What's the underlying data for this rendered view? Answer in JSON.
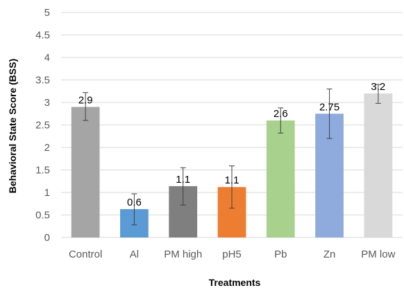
{
  "chart_data": {
    "type": "bar",
    "xlabel": "Treatments",
    "ylabel": "Behavioral State Score (BSS)",
    "ylim": [
      0,
      5
    ],
    "yticks": [
      0,
      0.5,
      1,
      1.5,
      2,
      2.5,
      3,
      3.5,
      4,
      4.5,
      5
    ],
    "ytick_labels": [
      "0",
      "0.5",
      "1",
      "1.5",
      "2",
      "2.5",
      "3",
      "3.5",
      "4",
      "4.5",
      "5"
    ],
    "grid": true,
    "categories": [
      "Control",
      "Al",
      "PM high",
      "pH5",
      "Pb",
      "Zn",
      "PM low"
    ],
    "values": [
      2.9,
      0.63,
      1.14,
      1.12,
      2.6,
      2.75,
      3.2
    ],
    "data_labels": [
      "2.9",
      "0.6",
      "1.1",
      "1.1",
      "2.6",
      "2.75",
      "3.2"
    ],
    "error_low": [
      2.6,
      0.28,
      0.72,
      0.65,
      2.32,
      2.2,
      2.98
    ],
    "error_high": [
      3.22,
      0.97,
      1.55,
      1.59,
      2.88,
      3.3,
      3.4
    ],
    "colors": [
      "#a5a5a5",
      "#5b9bd5",
      "#7f7f7f",
      "#ed7d31",
      "#a9d18e",
      "#8faadc",
      "#d9d9d9"
    ],
    "gridline_color": "#d9d9d9",
    "error_bar_color": "#404040"
  }
}
